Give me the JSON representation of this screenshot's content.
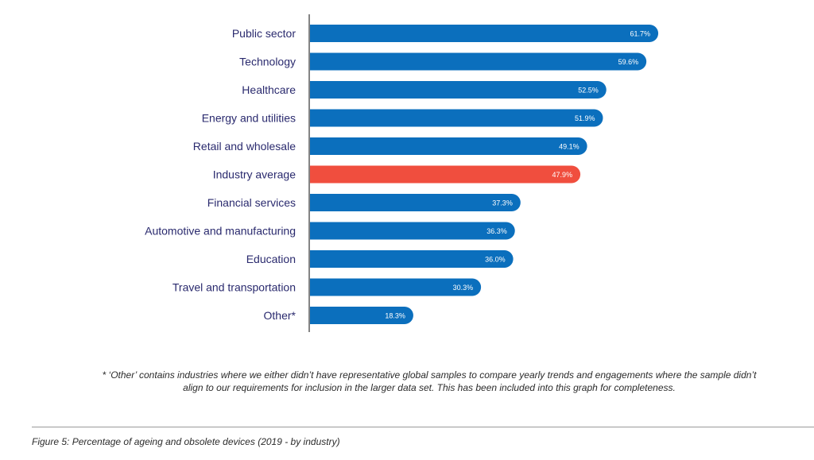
{
  "chart_data": {
    "type": "bar",
    "orientation": "horizontal",
    "categories": [
      "Public sector",
      "Technology",
      "Healthcare",
      "Energy and utilities",
      "Retail and wholesale",
      "Industry average",
      "Financial services",
      "Automotive and manufacturing",
      "Education",
      "Travel and transportation",
      "Other*"
    ],
    "values": [
      61.7,
      59.6,
      52.5,
      51.9,
      49.1,
      47.9,
      37.3,
      36.3,
      36.0,
      30.3,
      18.3
    ],
    "value_labels": [
      "61.7%",
      "59.6%",
      "52.5%",
      "51.9%",
      "49.1%",
      "47.9%",
      "37.3%",
      "36.3%",
      "36.0%",
      "30.3%",
      "18.3%"
    ],
    "unit": "%",
    "highlight_category": "Industry average",
    "colors": {
      "bar": "#0b6fbd",
      "highlight": "#f04e3e",
      "label": "#2a2a6e",
      "axis": "#333333"
    },
    "xlim": [
      0,
      100
    ],
    "grid": false,
    "legend": "none"
  },
  "footnote": "* ‘Other’ contains industries where we either didn’t have representative global samples to compare yearly trends and engagements where the sample didn’t align to our requirements for inclusion in the larger data set. This has been included into this graph for completeness.",
  "caption": "Figure 5: Percentage of ageing and obsolete devices (2019 - by industry)"
}
